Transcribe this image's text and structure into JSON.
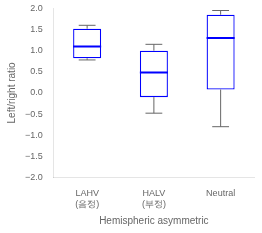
{
  "chart_data": {
    "type": "box",
    "categories": [
      [
        "LAHV",
        "(음정)"
      ],
      [
        "HALV",
        "(부정)"
      ],
      [
        "Neutral"
      ]
    ],
    "boxes": [
      {
        "q1": 0.82,
        "median": 1.1,
        "q3": 1.52,
        "whisker_low": 0.78,
        "whisker_high": 1.6
      },
      {
        "q1": -0.1,
        "median": 0.48,
        "q3": 1.0,
        "whisker_low": -0.48,
        "whisker_high": 1.15
      },
      {
        "q1": 0.08,
        "median": 1.3,
        "q3": 1.85,
        "whisker_low": -0.8,
        "whisker_high": 1.95
      }
    ],
    "color": "#0000FF",
    "xlabel": "Hemispheric asymmetric",
    "ylabel": "Left/right ratio",
    "ylim": [
      -2,
      2
    ],
    "yticks": [
      {
        "value": -2,
        "label": "−2.0"
      },
      {
        "value": -1.5,
        "label": "−1.5"
      },
      {
        "value": -1,
        "label": "−1.0"
      },
      {
        "value": -0.5,
        "label": "−0.5"
      },
      {
        "value": 0,
        "label": "0.0"
      },
      0.5,
      {
        "value": 1,
        "label": "1.0"
      },
      1.5,
      {
        "value": 2,
        "label": "2.0"
      }
    ],
    "grid": false
  }
}
